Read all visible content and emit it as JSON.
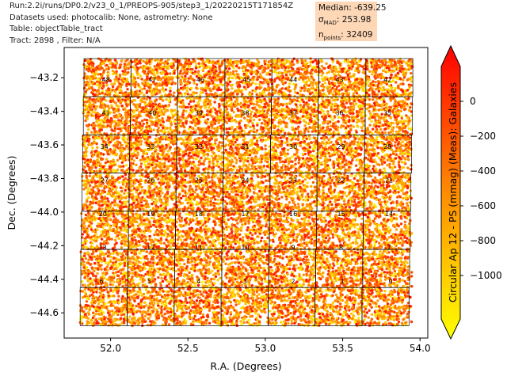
{
  "header": {
    "line1": "Run:2.2i/runs/DP0.2/v23_0_1/PREOPS-905/step3_1/20220215T171854Z",
    "line2": "Datasets used: photocalib: None, astrometry: None",
    "line3": "Table: objectTable_tract",
    "line4": "Tract: 2898 , Filter: N/A"
  },
  "stats": {
    "median": "Median: -639.25",
    "sigma_prefix": "σ",
    "sigma_sub": "MAD",
    "sigma_value": ": 253.98",
    "npoints_prefix": "n",
    "npoints_sub": "points",
    "npoints_value": ": 32409"
  },
  "colors": {
    "low": "#ffff00",
    "mid": "#ff8c00",
    "high": "#ff0000",
    "box": "#fdd7b6"
  },
  "chart_data": {
    "type": "scatter",
    "xlabel": "R.A. (Degrees)",
    "ylabel": "Dec. (Degrees)",
    "colorbar_label": "Circular Ap 12 - PS (mmag) (Meas): Galaxies",
    "xlim": [
      51.7,
      54.05
    ],
    "ylim": [
      -44.75,
      -43.02
    ],
    "xticks": [
      "52.0",
      "52.5",
      "53.0",
      "53.5",
      "54.0"
    ],
    "xtick_values": [
      52.0,
      52.5,
      53.0,
      53.5,
      54.0
    ],
    "yticks": [
      "−43.2",
      "−43.4",
      "−43.6",
      "−43.8",
      "−44.0",
      "−44.2",
      "−44.4",
      "−44.6"
    ],
    "ytick_values": [
      -43.2,
      -43.4,
      -43.6,
      -43.8,
      -44.0,
      -44.2,
      -44.4,
      -44.6
    ],
    "colorbar_range": [
      -1250,
      200
    ],
    "colorbar_ticks": [
      "0",
      "−200",
      "−400",
      "−600",
      "−800",
      "−1000"
    ],
    "colorbar_tick_values": [
      0,
      -200,
      -400,
      -600,
      -800,
      -1000
    ],
    "patches": [
      {
        "label": "48",
        "ra": 51.97,
        "dec": -43.21
      },
      {
        "label": "47",
        "ra": 52.27,
        "dec": -43.21
      },
      {
        "label": "46",
        "ra": 52.58,
        "dec": -43.21
      },
      {
        "label": "45",
        "ra": 52.88,
        "dec": -43.21
      },
      {
        "label": "44",
        "ra": 53.18,
        "dec": -43.21
      },
      {
        "label": "43",
        "ra": 53.48,
        "dec": -43.21
      },
      {
        "label": "42",
        "ra": 53.79,
        "dec": -43.21
      },
      {
        "label": "41",
        "ra": 51.97,
        "dec": -43.41
      },
      {
        "label": "40",
        "ra": 52.27,
        "dec": -43.41
      },
      {
        "label": "39",
        "ra": 52.57,
        "dec": -43.41
      },
      {
        "label": "38",
        "ra": 52.87,
        "dec": -43.41
      },
      {
        "label": "37",
        "ra": 53.18,
        "dec": -43.41
      },
      {
        "label": "36",
        "ra": 53.48,
        "dec": -43.41
      },
      {
        "label": "35",
        "ra": 53.79,
        "dec": -43.41
      },
      {
        "label": "34",
        "ra": 51.96,
        "dec": -43.61
      },
      {
        "label": "33",
        "ra": 52.26,
        "dec": -43.61
      },
      {
        "label": "32",
        "ra": 52.57,
        "dec": -43.61
      },
      {
        "label": "31",
        "ra": 52.87,
        "dec": -43.61
      },
      {
        "label": "30",
        "ra": 53.18,
        "dec": -43.61
      },
      {
        "label": "29",
        "ra": 53.49,
        "dec": -43.61
      },
      {
        "label": "28",
        "ra": 53.79,
        "dec": -43.61
      },
      {
        "label": "27",
        "ra": 51.96,
        "dec": -43.81
      },
      {
        "label": "26",
        "ra": 52.26,
        "dec": -43.81
      },
      {
        "label": "25",
        "ra": 52.57,
        "dec": -43.81
      },
      {
        "label": "24",
        "ra": 52.87,
        "dec": -43.81
      },
      {
        "label": "23",
        "ra": 53.18,
        "dec": -43.81
      },
      {
        "label": "22",
        "ra": 53.49,
        "dec": -43.81
      },
      {
        "label": "21",
        "ra": 53.8,
        "dec": -43.81
      },
      {
        "label": "20",
        "ra": 51.95,
        "dec": -44.01
      },
      {
        "label": "19",
        "ra": 52.26,
        "dec": -44.01
      },
      {
        "label": "18",
        "ra": 52.57,
        "dec": -44.01
      },
      {
        "label": "17",
        "ra": 52.87,
        "dec": -44.01
      },
      {
        "label": "16",
        "ra": 53.18,
        "dec": -44.01
      },
      {
        "label": "15",
        "ra": 53.49,
        "dec": -44.01
      },
      {
        "label": "14",
        "ra": 53.8,
        "dec": -44.01
      },
      {
        "label": "13",
        "ra": 51.95,
        "dec": -44.21
      },
      {
        "label": "12",
        "ra": 52.26,
        "dec": -44.21
      },
      {
        "label": "11",
        "ra": 52.57,
        "dec": -44.21
      },
      {
        "label": "10",
        "ra": 52.87,
        "dec": -44.21
      },
      {
        "label": "9",
        "ra": 53.18,
        "dec": -44.21
      },
      {
        "label": "8",
        "ra": 53.49,
        "dec": -44.21
      },
      {
        "label": "7",
        "ra": 53.8,
        "dec": -44.21
      },
      {
        "label": "6",
        "ra": 51.94,
        "dec": -44.41
      },
      {
        "label": "5",
        "ra": 52.25,
        "dec": -44.41
      },
      {
        "label": "4",
        "ra": 52.57,
        "dec": -44.41
      },
      {
        "label": "3",
        "ra": 52.87,
        "dec": -44.41
      },
      {
        "label": "2",
        "ra": 53.18,
        "dec": -44.41
      },
      {
        "label": "1",
        "ra": 53.5,
        "dec": -44.41
      },
      {
        "label": "0",
        "ra": 53.81,
        "dec": -44.41
      }
    ]
  }
}
